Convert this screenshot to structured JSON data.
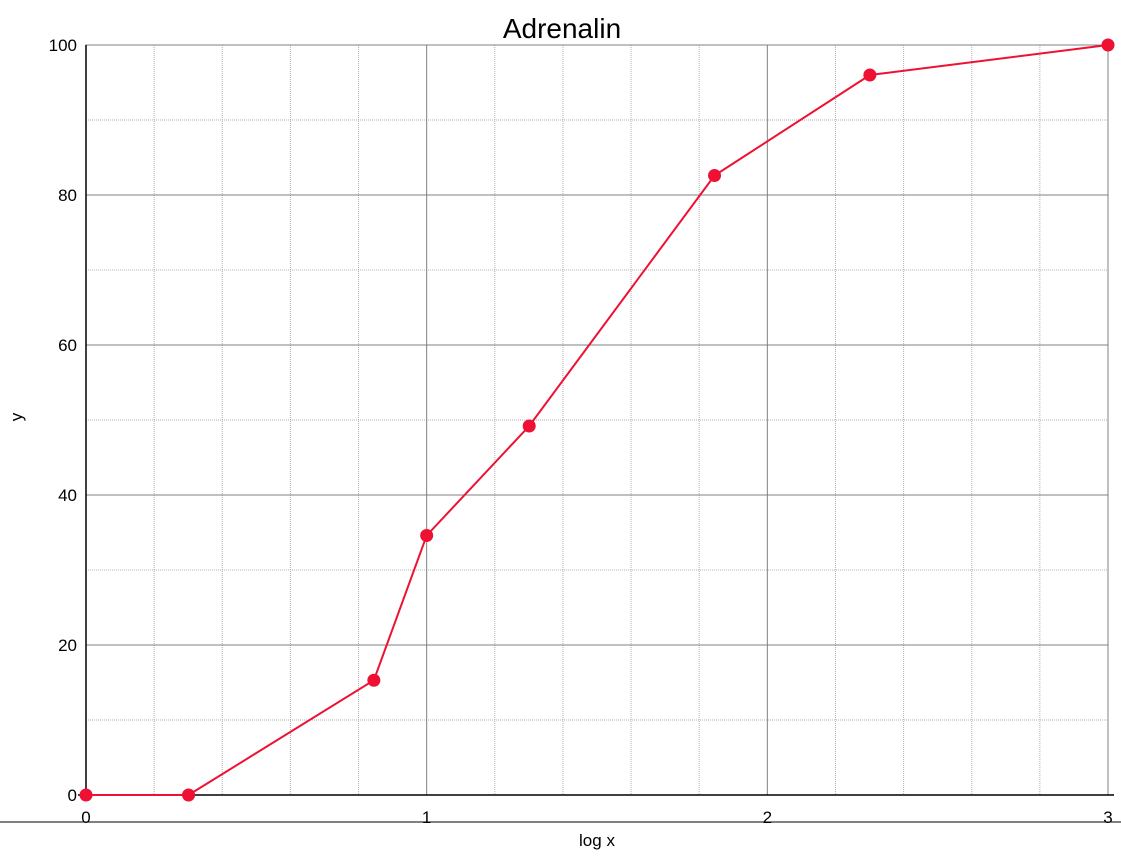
{
  "chart_data": {
    "type": "line",
    "title": "Adrenalin",
    "xlabel": "log x",
    "ylabel": "y",
    "xlim": [
      0,
      3
    ],
    "ylim": [
      0,
      100
    ],
    "x_ticks": [
      0,
      1,
      2,
      3
    ],
    "y_ticks": [
      0,
      20,
      40,
      60,
      80,
      100
    ],
    "x_minor_step": 0.2,
    "y_minor_step": 10,
    "grid": true,
    "line_color": "#ee1133",
    "series": [
      {
        "x": [
          0,
          0.301,
          0.845,
          1.0,
          1.301,
          1.845,
          2.301,
          3.0
        ],
        "y": [
          0,
          0,
          15.3,
          34.6,
          49.2,
          82.6,
          96.0,
          100.0
        ]
      }
    ]
  }
}
